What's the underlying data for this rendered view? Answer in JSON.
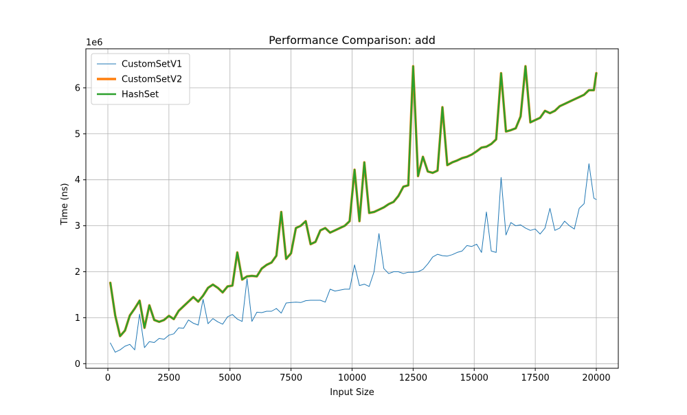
{
  "chart_data": {
    "type": "line",
    "title": "Performance Comparison: add",
    "xlabel": "Input Size",
    "ylabel": "Time (ns)",
    "y_scale_label": "1e6",
    "xlim": [
      -900,
      20900
    ],
    "ylim": [
      -0.1,
      6.85
    ],
    "x_ticks": [
      0,
      2500,
      5000,
      7500,
      10000,
      12500,
      15000,
      17500,
      20000
    ],
    "x_tick_labels": [
      "0",
      "2500",
      "5000",
      "7500",
      "10000",
      "12500",
      "15000",
      "17500",
      "20000"
    ],
    "y_ticks": [
      0,
      1,
      2,
      3,
      4,
      5,
      6
    ],
    "y_tick_labels": [
      "0",
      "1",
      "2",
      "3",
      "4",
      "5",
      "6"
    ],
    "grid": true,
    "legend_position": "top-left",
    "x": [
      100,
      300,
      500,
      700,
      900,
      1100,
      1300,
      1500,
      1700,
      1900,
      2100,
      2300,
      2500,
      2700,
      2900,
      3100,
      3300,
      3500,
      3700,
      3900,
      4100,
      4300,
      4500,
      4700,
      4900,
      5100,
      5300,
      5500,
      5700,
      5900,
      6100,
      6300,
      6500,
      6700,
      6900,
      7100,
      7300,
      7500,
      7700,
      7900,
      8100,
      8300,
      8500,
      8700,
      8900,
      9100,
      9300,
      9500,
      9700,
      9900,
      10100,
      10300,
      10500,
      10700,
      10900,
      11100,
      11300,
      11500,
      11700,
      11900,
      12100,
      12300,
      12500,
      12700,
      12900,
      13100,
      13300,
      13500,
      13700,
      13900,
      14100,
      14300,
      14500,
      14700,
      14900,
      15100,
      15300,
      15500,
      15700,
      15900,
      16100,
      16300,
      16500,
      16700,
      16900,
      17100,
      17300,
      17500,
      17700,
      17900,
      18100,
      18300,
      18500,
      18700,
      18900,
      19100,
      19300,
      19500,
      19700,
      19900,
      20000
    ],
    "series": [
      {
        "name": "CustomSetV1",
        "color": "#1f77b4",
        "line_width": "thin",
        "values": [
          0.45,
          0.25,
          0.3,
          0.38,
          0.42,
          0.3,
          1.08,
          0.35,
          0.48,
          0.46,
          0.55,
          0.53,
          0.62,
          0.65,
          0.78,
          0.77,
          0.95,
          0.88,
          0.84,
          1.4,
          0.87,
          0.98,
          0.91,
          0.86,
          1.02,
          1.07,
          0.97,
          0.92,
          1.85,
          0.92,
          1.12,
          1.11,
          1.14,
          1.14,
          1.2,
          1.1,
          1.32,
          1.33,
          1.34,
          1.33,
          1.37,
          1.38,
          1.38,
          1.38,
          1.34,
          1.62,
          1.58,
          1.6,
          1.62,
          1.62,
          2.15,
          1.7,
          1.73,
          1.68,
          2.0,
          2.83,
          2.07,
          1.96,
          2.0,
          2.0,
          1.96,
          1.99,
          1.99,
          2.0,
          2.05,
          2.17,
          2.32,
          2.38,
          2.35,
          2.34,
          2.37,
          2.42,
          2.45,
          2.57,
          2.55,
          2.6,
          2.42,
          3.3,
          2.45,
          2.42,
          4.05,
          2.8,
          3.07,
          3.0,
          3.02,
          2.95,
          2.9,
          2.93,
          2.82,
          2.95,
          3.38,
          2.9,
          2.95,
          3.1,
          3.0,
          2.93,
          3.38,
          3.48,
          4.35,
          3.6,
          3.57
        ]
      },
      {
        "name": "CustomSetV2",
        "color": "#ff7f0e",
        "line_width": "thick",
        "values": [
          1.76,
          1.05,
          0.6,
          0.72,
          1.05,
          1.2,
          1.37,
          0.78,
          1.27,
          0.95,
          0.91,
          0.95,
          1.04,
          0.97,
          1.15,
          1.25,
          1.35,
          1.45,
          1.35,
          1.48,
          1.65,
          1.72,
          1.65,
          1.55,
          1.68,
          1.7,
          2.42,
          1.83,
          1.9,
          1.91,
          1.9,
          2.07,
          2.15,
          2.2,
          2.35,
          3.3,
          2.28,
          2.4,
          2.95,
          3.0,
          3.1,
          2.6,
          2.65,
          2.9,
          2.95,
          2.85,
          2.9,
          2.95,
          3.0,
          3.1,
          4.22,
          3.1,
          4.38,
          3.28,
          3.3,
          3.35,
          3.4,
          3.47,
          3.52,
          3.65,
          3.85,
          3.88,
          6.47,
          4.08,
          4.5,
          4.18,
          4.15,
          4.2,
          5.58,
          4.32,
          4.38,
          4.42,
          4.47,
          4.5,
          4.55,
          4.62,
          4.7,
          4.72,
          4.78,
          4.88,
          6.32,
          5.05,
          5.08,
          5.12,
          5.38,
          6.47,
          5.25,
          5.3,
          5.35,
          5.5,
          5.45,
          5.5,
          5.6,
          5.65,
          5.7,
          5.75,
          5.8,
          5.85,
          5.95,
          5.95,
          6.32
        ]
      },
      {
        "name": "HashSet",
        "color": "#2ca02c",
        "line_width": "medium",
        "values": [
          1.76,
          1.05,
          0.6,
          0.72,
          1.05,
          1.2,
          1.37,
          0.78,
          1.27,
          0.95,
          0.91,
          0.95,
          1.04,
          0.97,
          1.15,
          1.25,
          1.35,
          1.45,
          1.35,
          1.48,
          1.65,
          1.72,
          1.65,
          1.55,
          1.68,
          1.7,
          2.42,
          1.83,
          1.9,
          1.91,
          1.9,
          2.07,
          2.15,
          2.2,
          2.35,
          3.3,
          2.28,
          2.4,
          2.95,
          3.0,
          3.1,
          2.6,
          2.65,
          2.9,
          2.95,
          2.85,
          2.9,
          2.95,
          3.0,
          3.1,
          4.22,
          3.1,
          4.38,
          3.28,
          3.3,
          3.35,
          3.4,
          3.47,
          3.52,
          3.65,
          3.85,
          3.88,
          6.47,
          4.08,
          4.5,
          4.18,
          4.15,
          4.2,
          5.58,
          4.32,
          4.38,
          4.42,
          4.47,
          4.5,
          4.55,
          4.62,
          4.7,
          4.72,
          4.78,
          4.88,
          6.32,
          5.05,
          5.08,
          5.12,
          5.38,
          6.47,
          5.25,
          5.3,
          5.35,
          5.5,
          5.45,
          5.5,
          5.6,
          5.65,
          5.7,
          5.75,
          5.8,
          5.85,
          5.95,
          5.95,
          6.32
        ]
      }
    ]
  }
}
